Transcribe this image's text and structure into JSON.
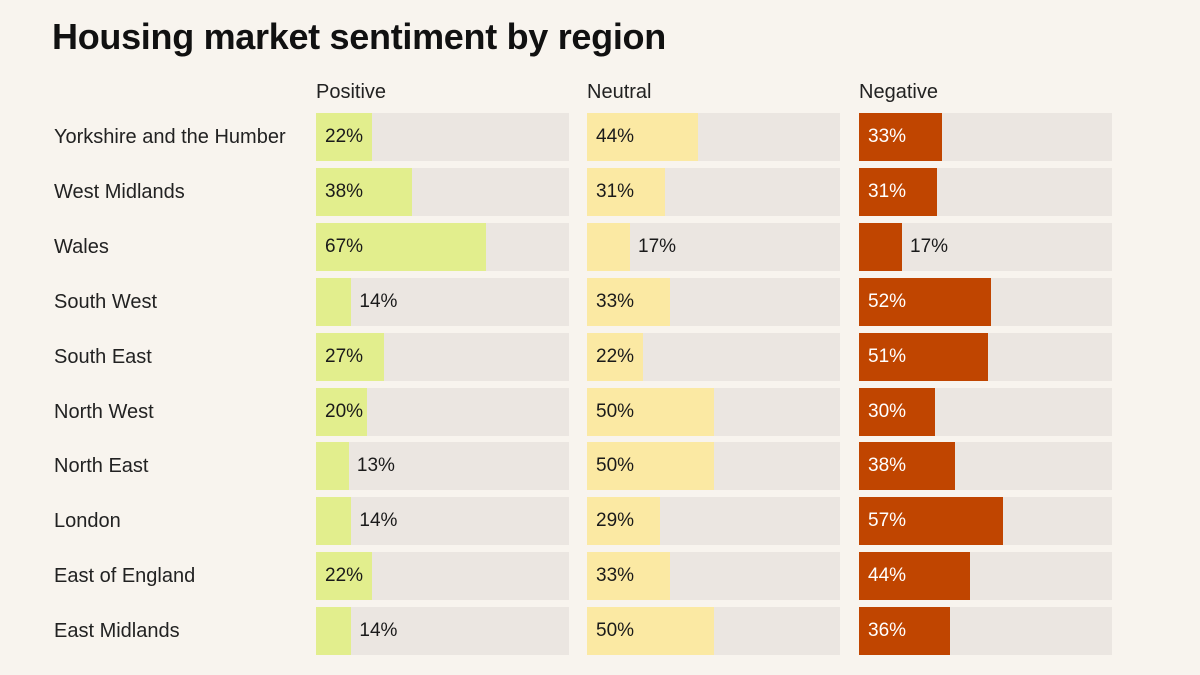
{
  "chart_data": {
    "type": "bar",
    "title": "Housing market sentiment by region",
    "categories": [
      "Yorkshire and the Humber",
      "West Midlands",
      "Wales",
      "South West",
      "South East",
      "North West",
      "North East",
      "London",
      "East of England",
      "East Midlands"
    ],
    "series": [
      {
        "name": "Positive",
        "color": "#e2ee8d",
        "text_color": "#1a1a1a",
        "values": [
          22,
          38,
          67,
          14,
          27,
          20,
          13,
          14,
          22,
          14
        ],
        "labels": [
          "22%",
          "38%",
          "67%",
          "14%",
          "27%",
          "20%",
          "13%",
          "14%",
          "22%",
          "14%"
        ]
      },
      {
        "name": "Neutral",
        "color": "#fbe9a3",
        "text_color": "#1a1a1a",
        "values": [
          44,
          31,
          17,
          33,
          22,
          50,
          50,
          29,
          33,
          50
        ],
        "labels": [
          "44%",
          "31%",
          "17%",
          "33%",
          "22%",
          "50%",
          "50%",
          "29%",
          "33%",
          "50%"
        ]
      },
      {
        "name": "Negative",
        "color": "#c04500",
        "text_color": "#ffffff",
        "values": [
          33,
          31,
          17,
          52,
          51,
          30,
          38,
          57,
          44,
          36
        ],
        "labels": [
          "33%",
          "31%",
          "17%",
          "52%",
          "51%",
          "30%",
          "38%",
          "57%",
          "44%",
          "36%"
        ]
      }
    ],
    "xlim": [
      0,
      100
    ],
    "track_color": "#ebe6e1",
    "legend": "column headers above each panel",
    "grid": false
  }
}
